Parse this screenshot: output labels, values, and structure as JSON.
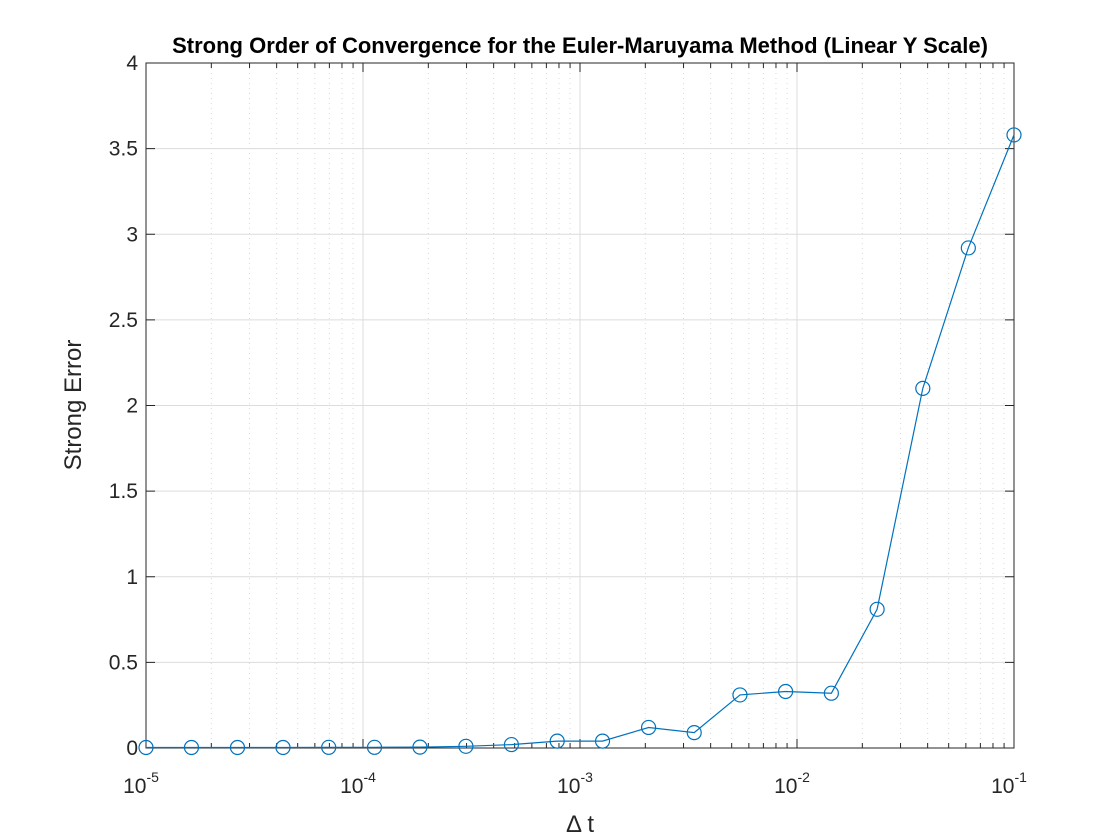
{
  "chart_data": {
    "type": "line",
    "title": "Strong Order of Convergence for the Euler-Maruyama Method (Linear Y Scale)",
    "xlabel": "Δ t",
    "ylabel": "Strong Error",
    "x_scale": "log",
    "y_scale": "linear",
    "xlim": [
      1e-05,
      0.1
    ],
    "ylim": [
      0,
      4
    ],
    "grid": true,
    "minor_grid": true,
    "x_ticks": [
      {
        "base": "10",
        "exp": "-5",
        "value": 1e-05
      },
      {
        "base": "10",
        "exp": "-4",
        "value": 0.0001
      },
      {
        "base": "10",
        "exp": "-3",
        "value": 0.001
      },
      {
        "base": "10",
        "exp": "-2",
        "value": 0.01
      },
      {
        "base": "10",
        "exp": "-1",
        "value": 0.1
      }
    ],
    "y_ticks": [
      {
        "label": "0",
        "value": 0
      },
      {
        "label": "0.5",
        "value": 0.5
      },
      {
        "label": "1",
        "value": 1
      },
      {
        "label": "1.5",
        "value": 1.5
      },
      {
        "label": "2",
        "value": 2
      },
      {
        "label": "2.5",
        "value": 2.5
      },
      {
        "label": "3",
        "value": 3
      },
      {
        "label": "3.5",
        "value": 3.5
      },
      {
        "label": "4",
        "value": 4
      }
    ],
    "series": [
      {
        "color": "#0072bd",
        "marker": "circle",
        "x": [
          1e-05,
          1.62e-05,
          2.64e-05,
          4.28e-05,
          6.95e-05,
          0.000113,
          0.000183,
          0.000298,
          0.000483,
          0.000785,
          0.00127,
          0.00207,
          0.00336,
          0.00546,
          0.00886,
          0.0144,
          0.0234,
          0.038,
          0.0616,
          0.1
        ],
        "y": [
          0.003,
          0.003,
          0.003,
          0.003,
          0.004,
          0.004,
          0.005,
          0.01,
          0.02,
          0.04,
          0.04,
          0.12,
          0.09,
          0.31,
          0.33,
          0.32,
          0.81,
          2.1,
          2.92,
          3.58
        ]
      }
    ]
  }
}
